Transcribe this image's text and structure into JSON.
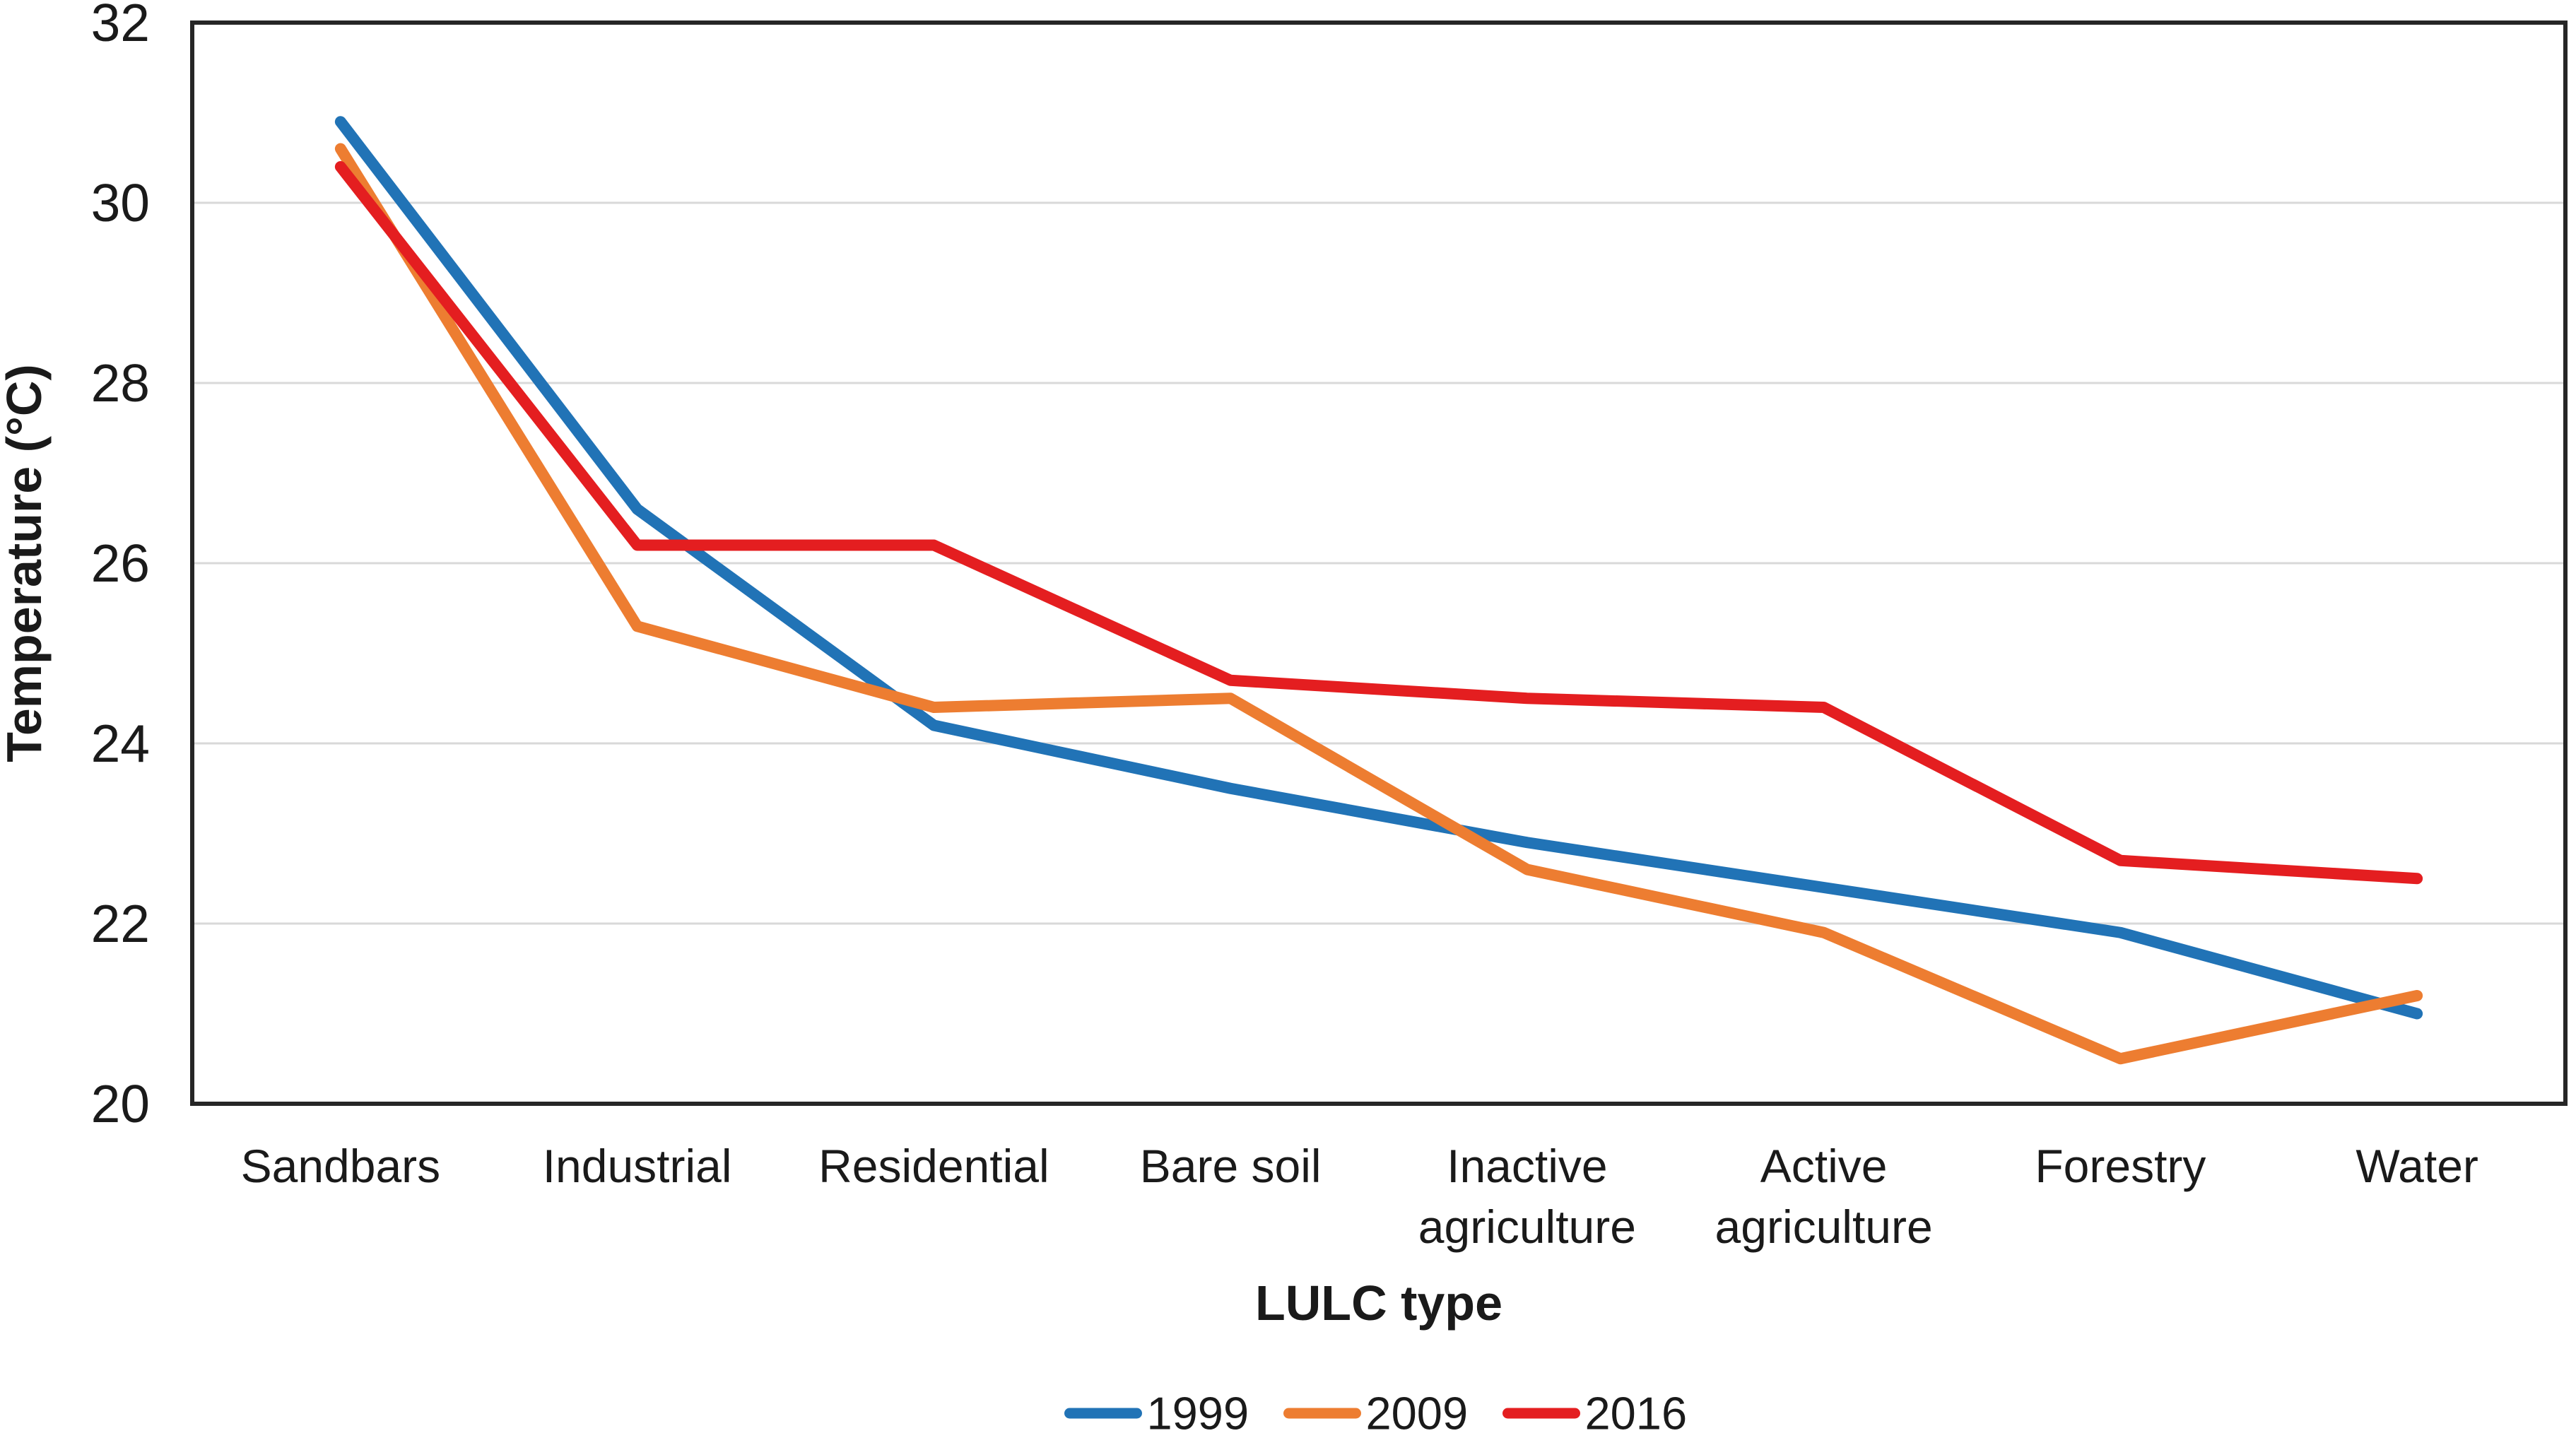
{
  "chart_data": {
    "type": "line",
    "title": "",
    "categories": [
      "Sandbars",
      "Industrial",
      "Residential",
      "Bare soil",
      "Inactive agriculture",
      "Active agriculture",
      "Forestry",
      "Water"
    ],
    "series": [
      {
        "name": "1999",
        "color": "#2173b6",
        "values": [
          30.9,
          26.6,
          24.2,
          23.5,
          22.9,
          22.4,
          21.9,
          21.0
        ]
      },
      {
        "name": "2009",
        "color": "#ed7d31",
        "values": [
          30.6,
          25.3,
          24.4,
          24.5,
          22.6,
          21.9,
          20.5,
          21.2
        ]
      },
      {
        "name": "2016",
        "color": "#e41e20",
        "values": [
          30.4,
          26.2,
          26.2,
          24.7,
          24.5,
          24.4,
          22.7,
          22.5
        ]
      }
    ],
    "xlabel": "LULC type",
    "ylabel": "Temperature (°C)",
    "ylim": [
      20,
      32
    ],
    "yticks": [
      20,
      22,
      24,
      26,
      28,
      30,
      32
    ],
    "grid": "horizontal",
    "legend_position": "bottom",
    "axis_color": "#262626",
    "gridline_color": "#d9d9d9",
    "text_color": "#1a1a1a",
    "background": "#ffffff"
  }
}
